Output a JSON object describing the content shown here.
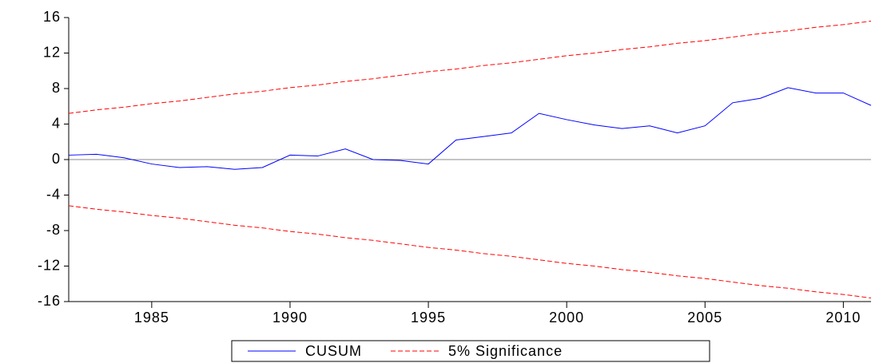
{
  "chart_data": {
    "type": "line",
    "x": [
      1982,
      1983,
      1984,
      1985,
      1986,
      1987,
      1988,
      1989,
      1990,
      1991,
      1992,
      1993,
      1994,
      1995,
      1996,
      1997,
      1998,
      1999,
      2000,
      2001,
      2002,
      2003,
      2004,
      2005,
      2006,
      2007,
      2008,
      2009,
      2010,
      2011
    ],
    "series": [
      {
        "name": "CUSUM",
        "color": "#0000ff",
        "dash": false,
        "values": [
          0.5,
          0.6,
          0.2,
          -0.5,
          -0.9,
          -0.8,
          -1.1,
          -0.9,
          0.5,
          0.4,
          1.2,
          0.0,
          -0.1,
          -0.5,
          2.2,
          2.6,
          3.0,
          5.2,
          4.5,
          3.9,
          3.5,
          3.8,
          3.0,
          3.8,
          6.4,
          6.9,
          8.1,
          7.5,
          7.5,
          6.1
        ]
      },
      {
        "name": "5% Significance",
        "color": "#ff0000",
        "dash": true,
        "values": [
          5.2,
          5.6,
          5.9,
          6.3,
          6.6,
          7.0,
          7.4,
          7.7,
          8.1,
          8.4,
          8.8,
          9.1,
          9.5,
          9.9,
          10.2,
          10.6,
          10.9,
          11.3,
          11.7,
          12.0,
          12.4,
          12.7,
          13.1,
          13.4,
          13.8,
          14.2,
          14.5,
          14.9,
          15.2,
          15.6
        ]
      },
      {
        "color": "#ff0000",
        "dash": true,
        "values": [
          -5.2,
          -5.6,
          -5.9,
          -6.3,
          -6.6,
          -7.0,
          -7.4,
          -7.7,
          -8.1,
          -8.4,
          -8.8,
          -9.1,
          -9.5,
          -9.9,
          -10.2,
          -10.6,
          -10.9,
          -11.3,
          -11.7,
          -12.0,
          -12.4,
          -12.7,
          -13.1,
          -13.4,
          -13.8,
          -14.2,
          -14.5,
          -14.9,
          -15.2,
          -15.6
        ]
      }
    ],
    "xlim": [
      1982,
      2011
    ],
    "xticks": [
      1985,
      1990,
      1995,
      2000,
      2005,
      2010
    ],
    "ylim": [
      -16,
      16
    ],
    "yticks": [
      -16,
      -12,
      -8,
      -4,
      0,
      4,
      8,
      12,
      16
    ],
    "zero_line": true,
    "grid": false,
    "legend": "bottom"
  }
}
